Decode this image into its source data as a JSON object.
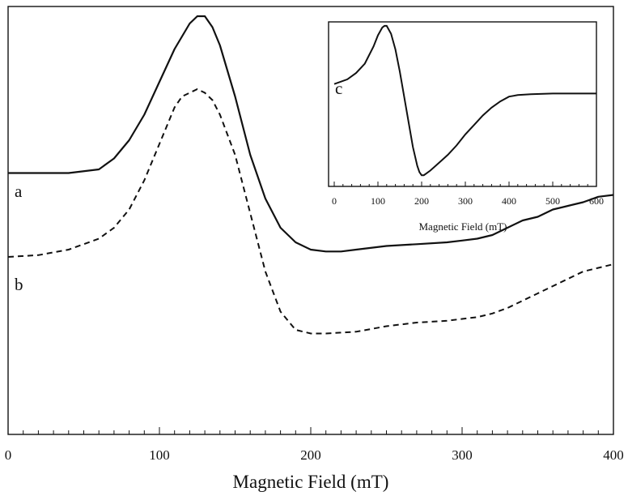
{
  "chart_data": [
    {
      "type": "line",
      "title": "",
      "xlabel": "Magnetic Field (mT)",
      "ylabel": "",
      "xlim": [
        0,
        400
      ],
      "x_ticks": [
        0,
        100,
        200,
        300,
        400
      ],
      "grid": false,
      "series": [
        {
          "name": "a",
          "style": "solid",
          "x": [
            0,
            40,
            60,
            70,
            80,
            90,
            100,
            110,
            120,
            125,
            130,
            135,
            140,
            150,
            160,
            170,
            180,
            190,
            200,
            210,
            220,
            230,
            250,
            270,
            290,
            300,
            310,
            320,
            330,
            340,
            350,
            360,
            370,
            380,
            390,
            400
          ],
          "y": [
            0.57,
            0.57,
            0.58,
            0.61,
            0.66,
            0.73,
            0.82,
            0.91,
            0.98,
            1.0,
            1.0,
            0.97,
            0.92,
            0.78,
            0.62,
            0.5,
            0.42,
            0.38,
            0.36,
            0.355,
            0.355,
            0.36,
            0.37,
            0.375,
            0.38,
            0.385,
            0.39,
            0.4,
            0.42,
            0.44,
            0.45,
            0.47,
            0.48,
            0.49,
            0.505,
            0.51
          ]
        },
        {
          "name": "b",
          "style": "dashed",
          "x": [
            0,
            20,
            40,
            60,
            70,
            80,
            90,
            100,
            110,
            115,
            120,
            125,
            130,
            135,
            140,
            150,
            160,
            170,
            180,
            190,
            200,
            210,
            230,
            250,
            270,
            290,
            300,
            310,
            320,
            330,
            340,
            350,
            360,
            370,
            380,
            390,
            400
          ],
          "y": [
            0.34,
            0.345,
            0.36,
            0.39,
            0.42,
            0.47,
            0.55,
            0.65,
            0.75,
            0.78,
            0.79,
            0.8,
            0.79,
            0.77,
            0.73,
            0.62,
            0.46,
            0.3,
            0.19,
            0.14,
            0.13,
            0.13,
            0.135,
            0.15,
            0.16,
            0.165,
            0.17,
            0.175,
            0.185,
            0.2,
            0.22,
            0.24,
            0.26,
            0.28,
            0.3,
            0.31,
            0.32
          ]
        }
      ]
    },
    {
      "type": "line",
      "title": "",
      "xlabel": "Magnetic Field (mT)",
      "ylabel": "",
      "xlim": [
        0,
        600
      ],
      "x_ticks": [
        0,
        100,
        200,
        300,
        400,
        500,
        600
      ],
      "grid": false,
      "series": [
        {
          "name": "c",
          "style": "solid",
          "x": [
            0,
            30,
            50,
            70,
            90,
            100,
            110,
            115,
            120,
            130,
            140,
            150,
            160,
            170,
            180,
            190,
            195,
            200,
            205,
            210,
            220,
            240,
            260,
            280,
            300,
            320,
            340,
            360,
            380,
            400,
            420,
            450,
            500,
            550,
            600
          ],
          "y": [
            0.62,
            0.65,
            0.69,
            0.75,
            0.86,
            0.93,
            0.98,
            0.99,
            0.99,
            0.94,
            0.84,
            0.7,
            0.54,
            0.38,
            0.22,
            0.1,
            0.06,
            0.04,
            0.04,
            0.05,
            0.07,
            0.12,
            0.17,
            0.23,
            0.3,
            0.36,
            0.42,
            0.47,
            0.51,
            0.54,
            0.55,
            0.555,
            0.56,
            0.56,
            0.56
          ]
        }
      ]
    }
  ]
}
